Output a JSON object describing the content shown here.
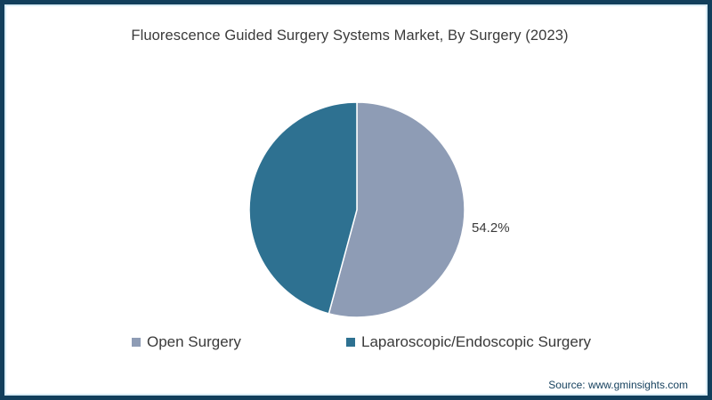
{
  "title": "Fluorescence Guided Surgery Systems Market, By Surgery (2023)",
  "source": "Source: www.gminsights.com",
  "colors": {
    "open_surgery": "#8e9cb5",
    "laparoscopic_surgery": "#2e7191",
    "frame_border": "#123f5c",
    "frame_inner_line": "#d9ecf5",
    "title_text": "#3a3a3a",
    "source_text": "#17425f",
    "slice_divider": "#ffffff"
  },
  "chart_data": {
    "type": "pie",
    "title": "Fluorescence Guided Surgery Systems Market, By Surgery (2023)",
    "start_angle_deg": 0,
    "direction": "clockwise",
    "legend_position": "bottom",
    "slices": [
      {
        "label": "Open Surgery",
        "value": 54.2,
        "color": "#8e9cb5",
        "data_label": "54.2%"
      },
      {
        "label": "Laparoscopic/Endoscopic Surgery",
        "value": 45.8,
        "color": "#2e7191",
        "data_label": ""
      }
    ],
    "annotations": [
      {
        "text": "54.2%",
        "slice": "Open Surgery",
        "position": "outside-right"
      }
    ]
  },
  "legend": {
    "items": [
      {
        "label": "Open Surgery",
        "color": "#8e9cb5"
      },
      {
        "label": "Laparoscopic/Endoscopic Surgery",
        "color": "#2e7191"
      }
    ]
  }
}
